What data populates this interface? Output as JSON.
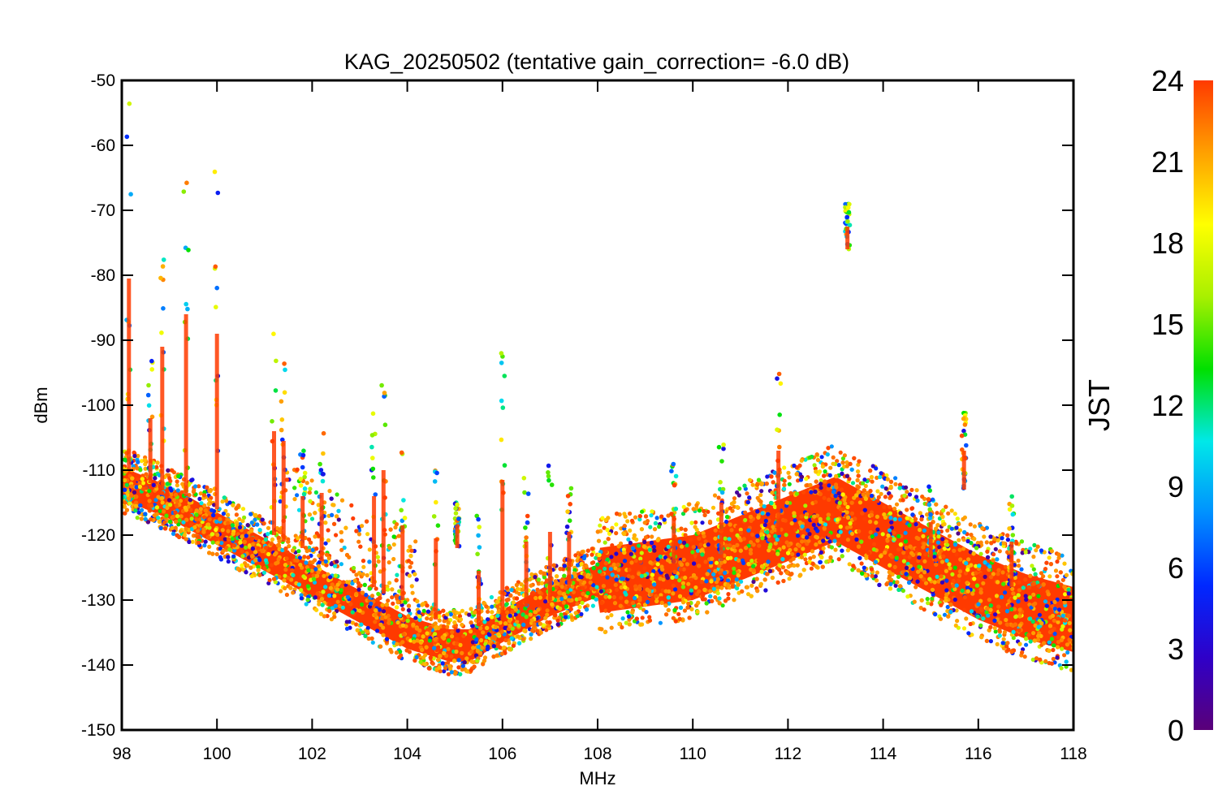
{
  "chart_data": {
    "type": "scatter",
    "title": "KAG_20250502 (tentative gain_correction= -6.0 dB)",
    "xlabel": "MHz",
    "ylabel": "dBm",
    "xlim": [
      98,
      118
    ],
    "ylim": [
      -150,
      -50
    ],
    "x_ticks": [
      "98",
      "100",
      "102",
      "104",
      "106",
      "108",
      "110",
      "112",
      "114",
      "116",
      "118"
    ],
    "y_ticks": [
      "-50",
      "-60",
      "-70",
      "-80",
      "-90",
      "-100",
      "-110",
      "-120",
      "-130",
      "-140",
      "-150"
    ],
    "grid": false,
    "colorbar": {
      "label": "JST",
      "range": [
        0,
        24
      ],
      "ticks": [
        "24",
        "21",
        "18",
        "15",
        "12",
        "9",
        "6",
        "3",
        "0"
      ],
      "colormap": [
        "#5a0078",
        "#2f00c8",
        "#0028ff",
        "#0090ff",
        "#00e8e8",
        "#00e000",
        "#a8f000",
        "#ffff00",
        "#ffa000",
        "#ff3a00"
      ]
    },
    "noise_floor": {
      "x": [
        98,
        99,
        100,
        101,
        102,
        103,
        104,
        104.9,
        105.3,
        106,
        107,
        108,
        109,
        110,
        111,
        112,
        113,
        114,
        115,
        116,
        117,
        118
      ],
      "y": [
        -112,
        -115,
        -119,
        -123,
        -127,
        -131,
        -135,
        -137,
        -137,
        -134,
        -130,
        -127,
        -126,
        -125,
        -122,
        -119,
        -116,
        -120,
        -124,
        -128,
        -131,
        -133
      ]
    },
    "peaks": [
      {
        "freq": 98.15,
        "top": -51,
        "base": -110
      },
      {
        "freq": 98.6,
        "top": -92,
        "base": -112
      },
      {
        "freq": 98.85,
        "top": -69,
        "base": -113
      },
      {
        "freq": 99.35,
        "top": -58,
        "base": -114
      },
      {
        "freq": 100.0,
        "top": -62,
        "base": -116
      },
      {
        "freq": 101.2,
        "top": -88,
        "base": -120
      },
      {
        "freq": 101.4,
        "top": -90,
        "base": -121
      },
      {
        "freq": 101.8,
        "top": -106,
        "base": -122
      },
      {
        "freq": 102.2,
        "top": -103,
        "base": -124
      },
      {
        "freq": 103.3,
        "top": -100,
        "base": -128
      },
      {
        "freq": 103.5,
        "top": -91,
        "base": -129
      },
      {
        "freq": 103.9,
        "top": -107,
        "base": -130
      },
      {
        "freq": 104.6,
        "top": -108,
        "base": -133
      },
      {
        "freq": 105.05,
        "top": -115,
        "base": -122
      },
      {
        "freq": 105.5,
        "top": -117,
        "base": -134
      },
      {
        "freq": 106.0,
        "top": -90,
        "base": -133
      },
      {
        "freq": 106.5,
        "top": -111,
        "base": -131
      },
      {
        "freq": 107.0,
        "top": -109,
        "base": -130
      },
      {
        "freq": 107.4,
        "top": -111,
        "base": -128
      },
      {
        "freq": 109.6,
        "top": -109,
        "base": -125
      },
      {
        "freq": 110.6,
        "top": -106,
        "base": -124
      },
      {
        "freq": 111.8,
        "top": -94,
        "base": -120
      },
      {
        "freq": 113.25,
        "top": -69,
        "base": -76
      },
      {
        "freq": 115.0,
        "top": -112,
        "base": -124
      },
      {
        "freq": 115.7,
        "top": -101,
        "base": -113
      },
      {
        "freq": 116.7,
        "top": -114,
        "base": -128
      }
    ]
  }
}
